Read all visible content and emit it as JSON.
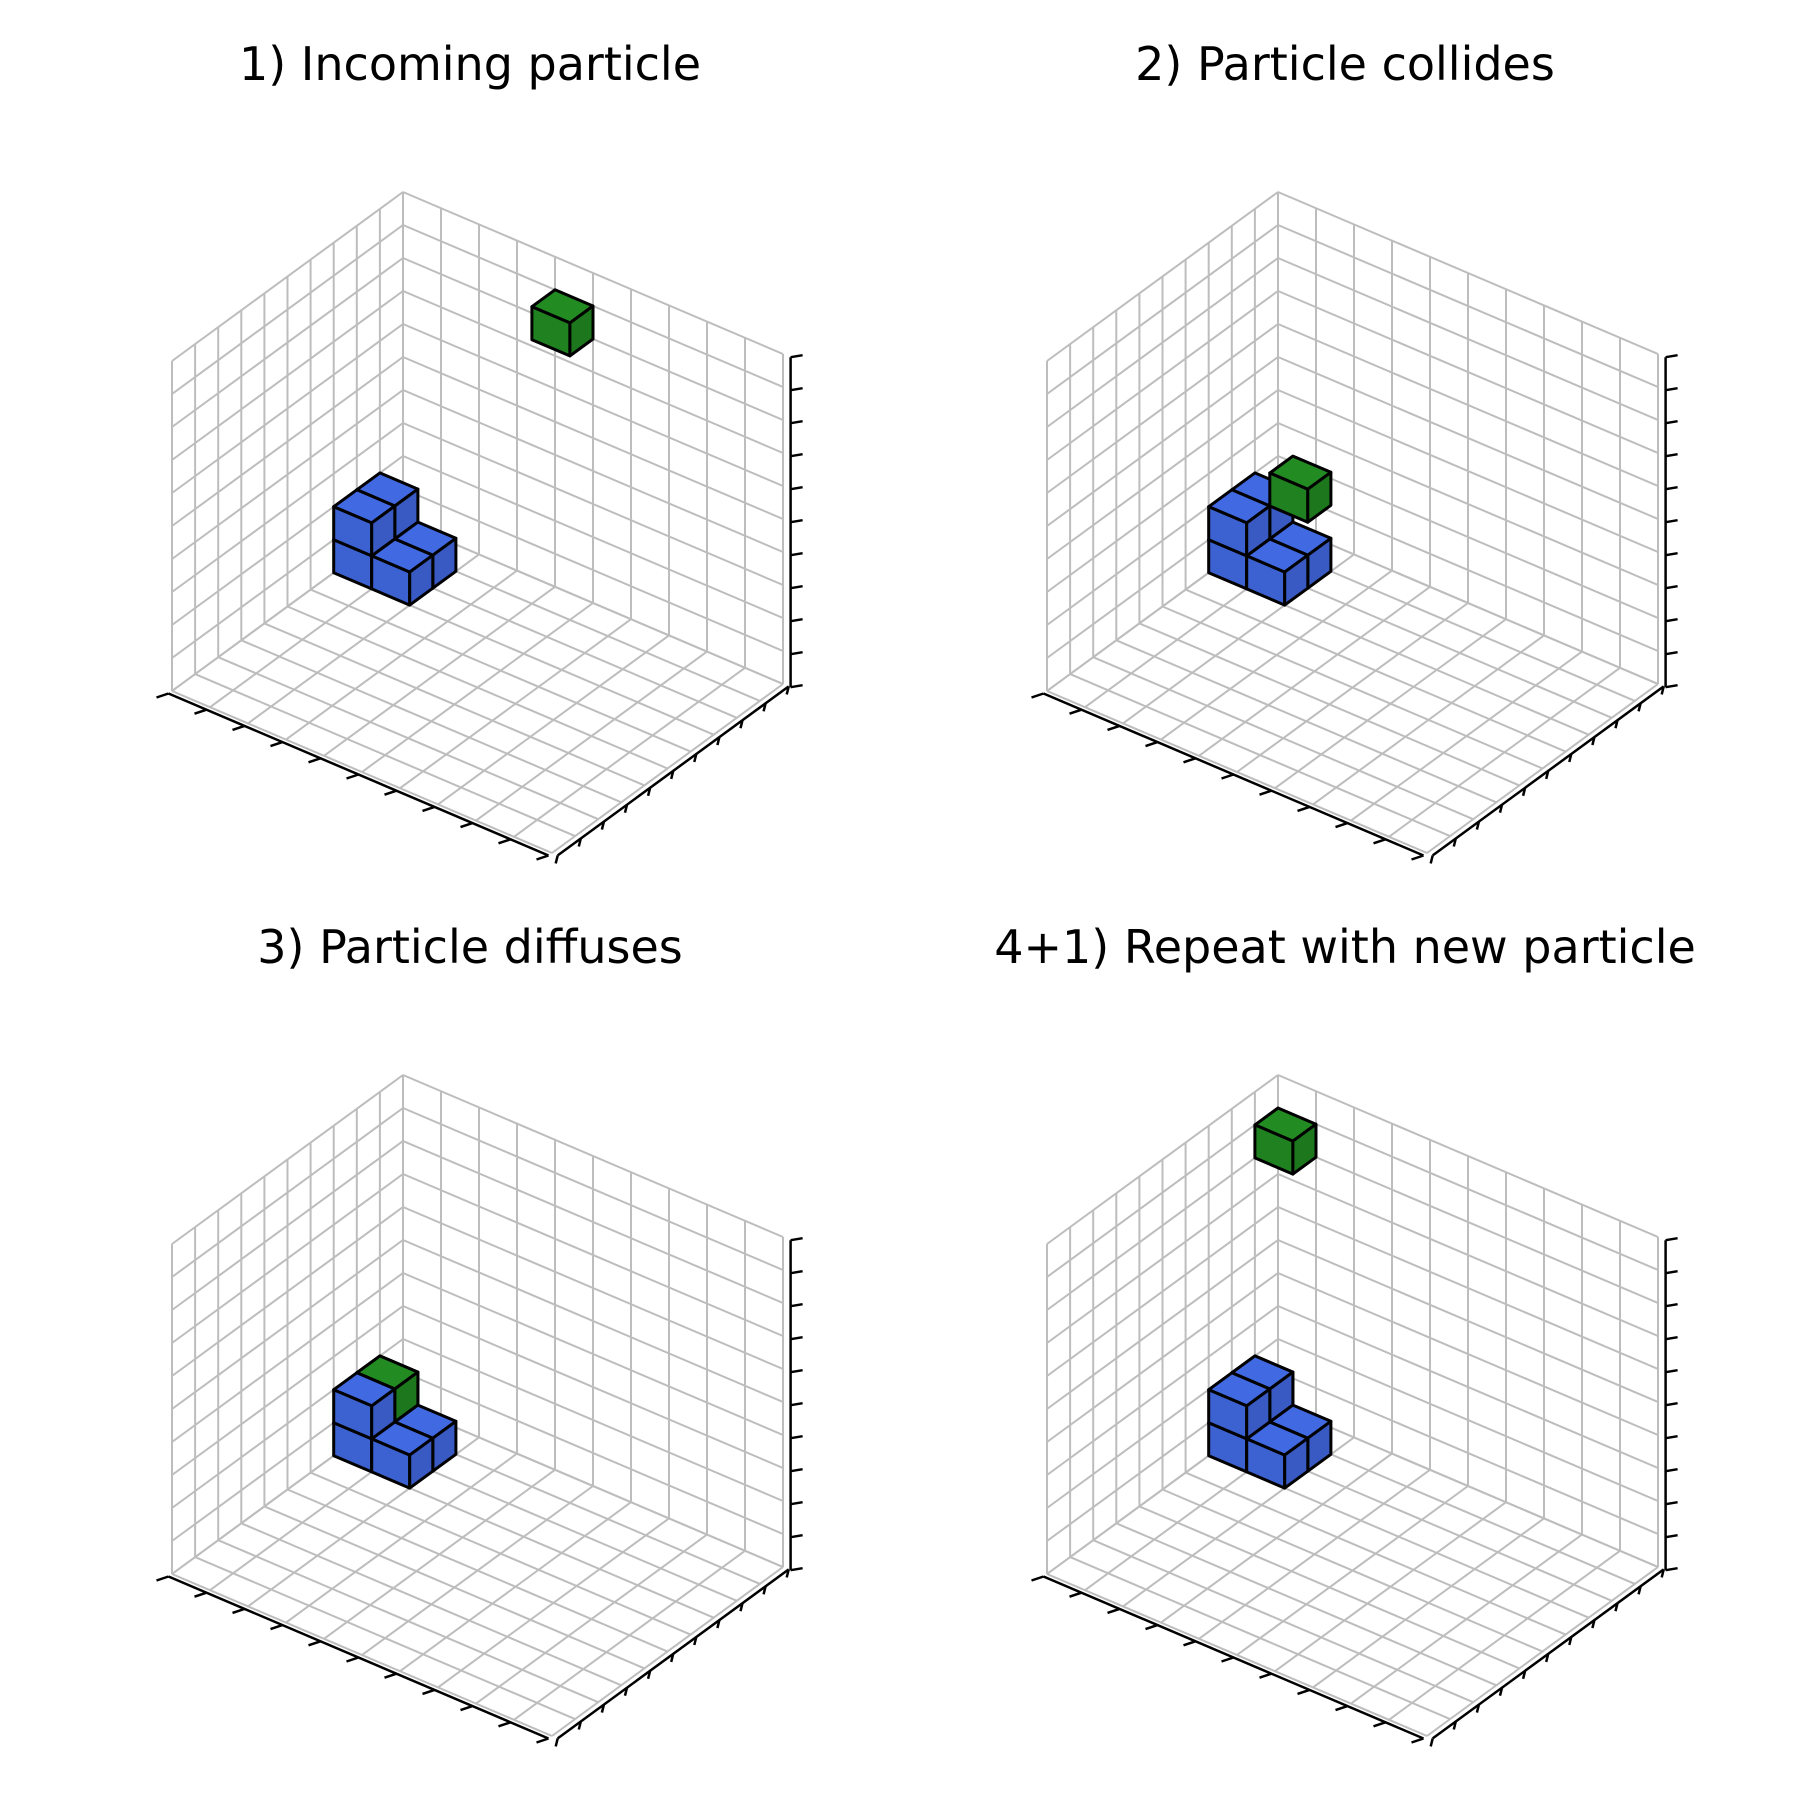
{
  "colors": {
    "cluster": "#4169e1",
    "particle": "#228b22",
    "grid": "#bdbdbd",
    "axis": "#000000"
  },
  "grid_size": 10,
  "cluster": [
    [
      1,
      0,
      0
    ],
    [
      2,
      0,
      0
    ],
    [
      1,
      1,
      0
    ],
    [
      1,
      0,
      1
    ],
    [
      2,
      0,
      1
    ],
    [
      2,
      1,
      0
    ]
  ],
  "panels": [
    {
      "title": "1) Incoming particle",
      "particle": [
        0,
        4,
        8
      ]
    },
    {
      "title": "2) Particle collides",
      "particle": [
        1,
        1,
        2
      ]
    },
    {
      "title": "3) Particle diffuses",
      "particle": [
        1,
        0,
        1
      ]
    },
    {
      "title": "4+1) Repeat with new particle",
      "particle": [
        0,
        0,
        8
      ],
      "cluster_extra": [
        [
          1,
          0,
          1
        ]
      ]
    }
  ]
}
